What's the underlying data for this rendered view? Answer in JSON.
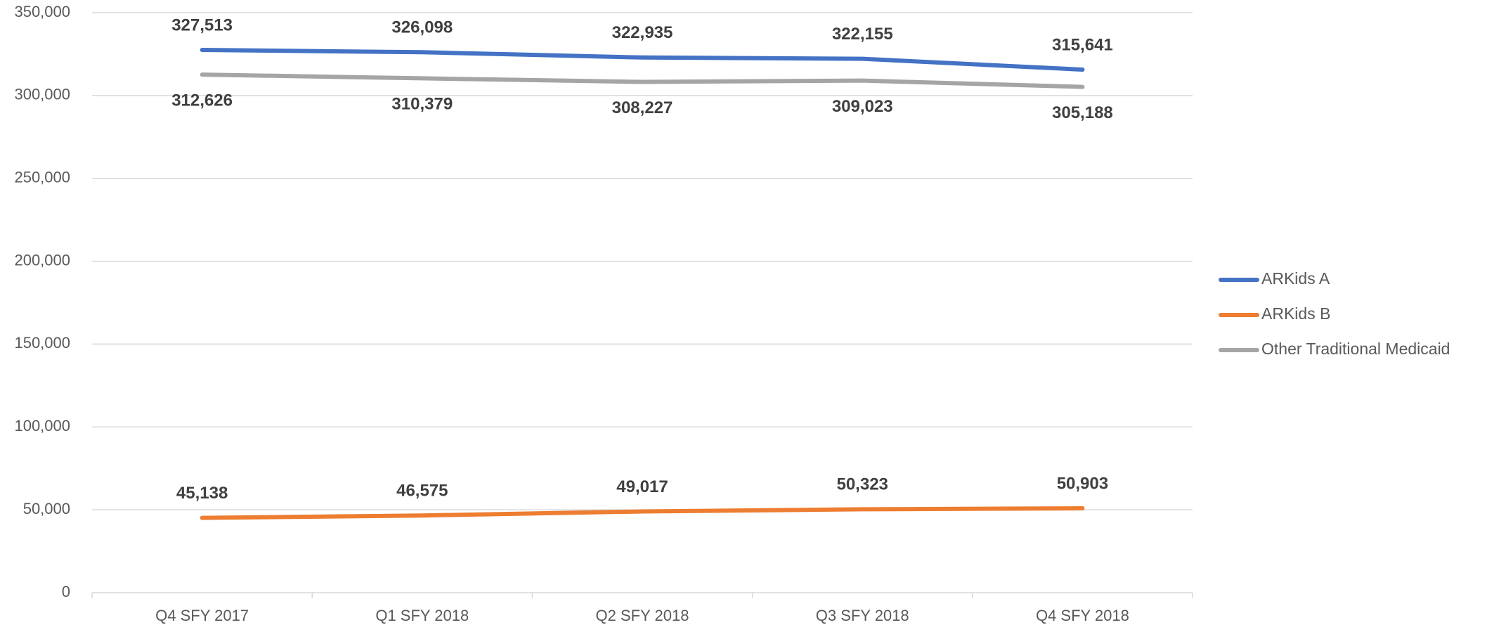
{
  "chart_data": {
    "type": "line",
    "categories": [
      "Q4 SFY 2017",
      "Q1 SFY 2018",
      "Q2 SFY 2018",
      "Q3 SFY 2018",
      "Q4 SFY 2018"
    ],
    "series": [
      {
        "name": "ARKids A",
        "color": "#4472c4",
        "values": [
          327513,
          326098,
          322935,
          322155,
          315641
        ],
        "value_labels": [
          "327,513",
          "326,098",
          "322,935",
          "322,155",
          "315,641"
        ]
      },
      {
        "name": "ARKids B",
        "color": "#ed7d31",
        "values": [
          45138,
          46575,
          49017,
          50323,
          50903
        ],
        "value_labels": [
          "45,138",
          "46,575",
          "49,017",
          "50,323",
          "50,903"
        ]
      },
      {
        "name": "Other Traditional Medicaid",
        "color": "#a5a5a5",
        "values": [
          312626,
          310379,
          308227,
          309023,
          305188
        ],
        "value_labels": [
          "312,626",
          "310,379",
          "308,227",
          "309,023",
          "305,188"
        ]
      }
    ],
    "ylim": [
      0,
      350000
    ],
    "yticks": [
      0,
      {
        "value": 50000,
        "label": "50,000"
      },
      {
        "value": 100000,
        "label": "100,000"
      },
      {
        "value": 150000,
        "label": "150,000"
      },
      {
        "value": 200000,
        "label": "200,000"
      },
      {
        "value": 250000,
        "label": "250,000"
      },
      {
        "value": 300000,
        "label": "300,000"
      },
      {
        "value": 350000,
        "label": "350,000"
      }
    ],
    "grid": true,
    "legend": "right"
  }
}
